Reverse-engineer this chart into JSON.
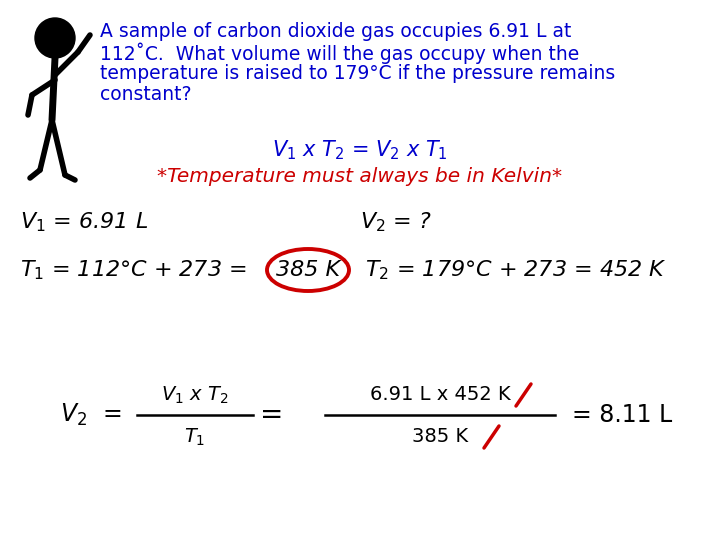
{
  "bg_color": "#ffffff",
  "blue_color": "#0000CD",
  "red_color": "#CC0000",
  "black_color": "#000000",
  "problem_text_line1": "A sample of carbon dioxide gas occupies 6.91 L at",
  "problem_text_line2": "112˚C.  What volume will the gas occupy when the",
  "problem_text_line3": "temperature is raised to 179°C if the pressure remains",
  "problem_text_line4": "constant?",
  "formula": "$V_1$ x $T_2$ = $V_2$ x $T_1$",
  "kelvin_note": "*Temperature must always be in Kelvin*",
  "v1_label": "$V_1$ = 6.91 L",
  "v2_label": "$V_2$ = ?",
  "t1_label": "$T_1$ = 112°C + 273 =",
  "t1_value": "385 K",
  "t2_label": "$T_2$ = 179°C + 273 = 452 K",
  "v2_eq_left": "$V_2$  =",
  "frac_num": "$V_1$ x $T_2$",
  "frac_den": "$T_1$",
  "eq_sign": "=",
  "frac_num2": "6.91 L x 452 K",
  "frac_den2": "385 K",
  "result": "= 8.11 L",
  "stick_color": "#000000"
}
